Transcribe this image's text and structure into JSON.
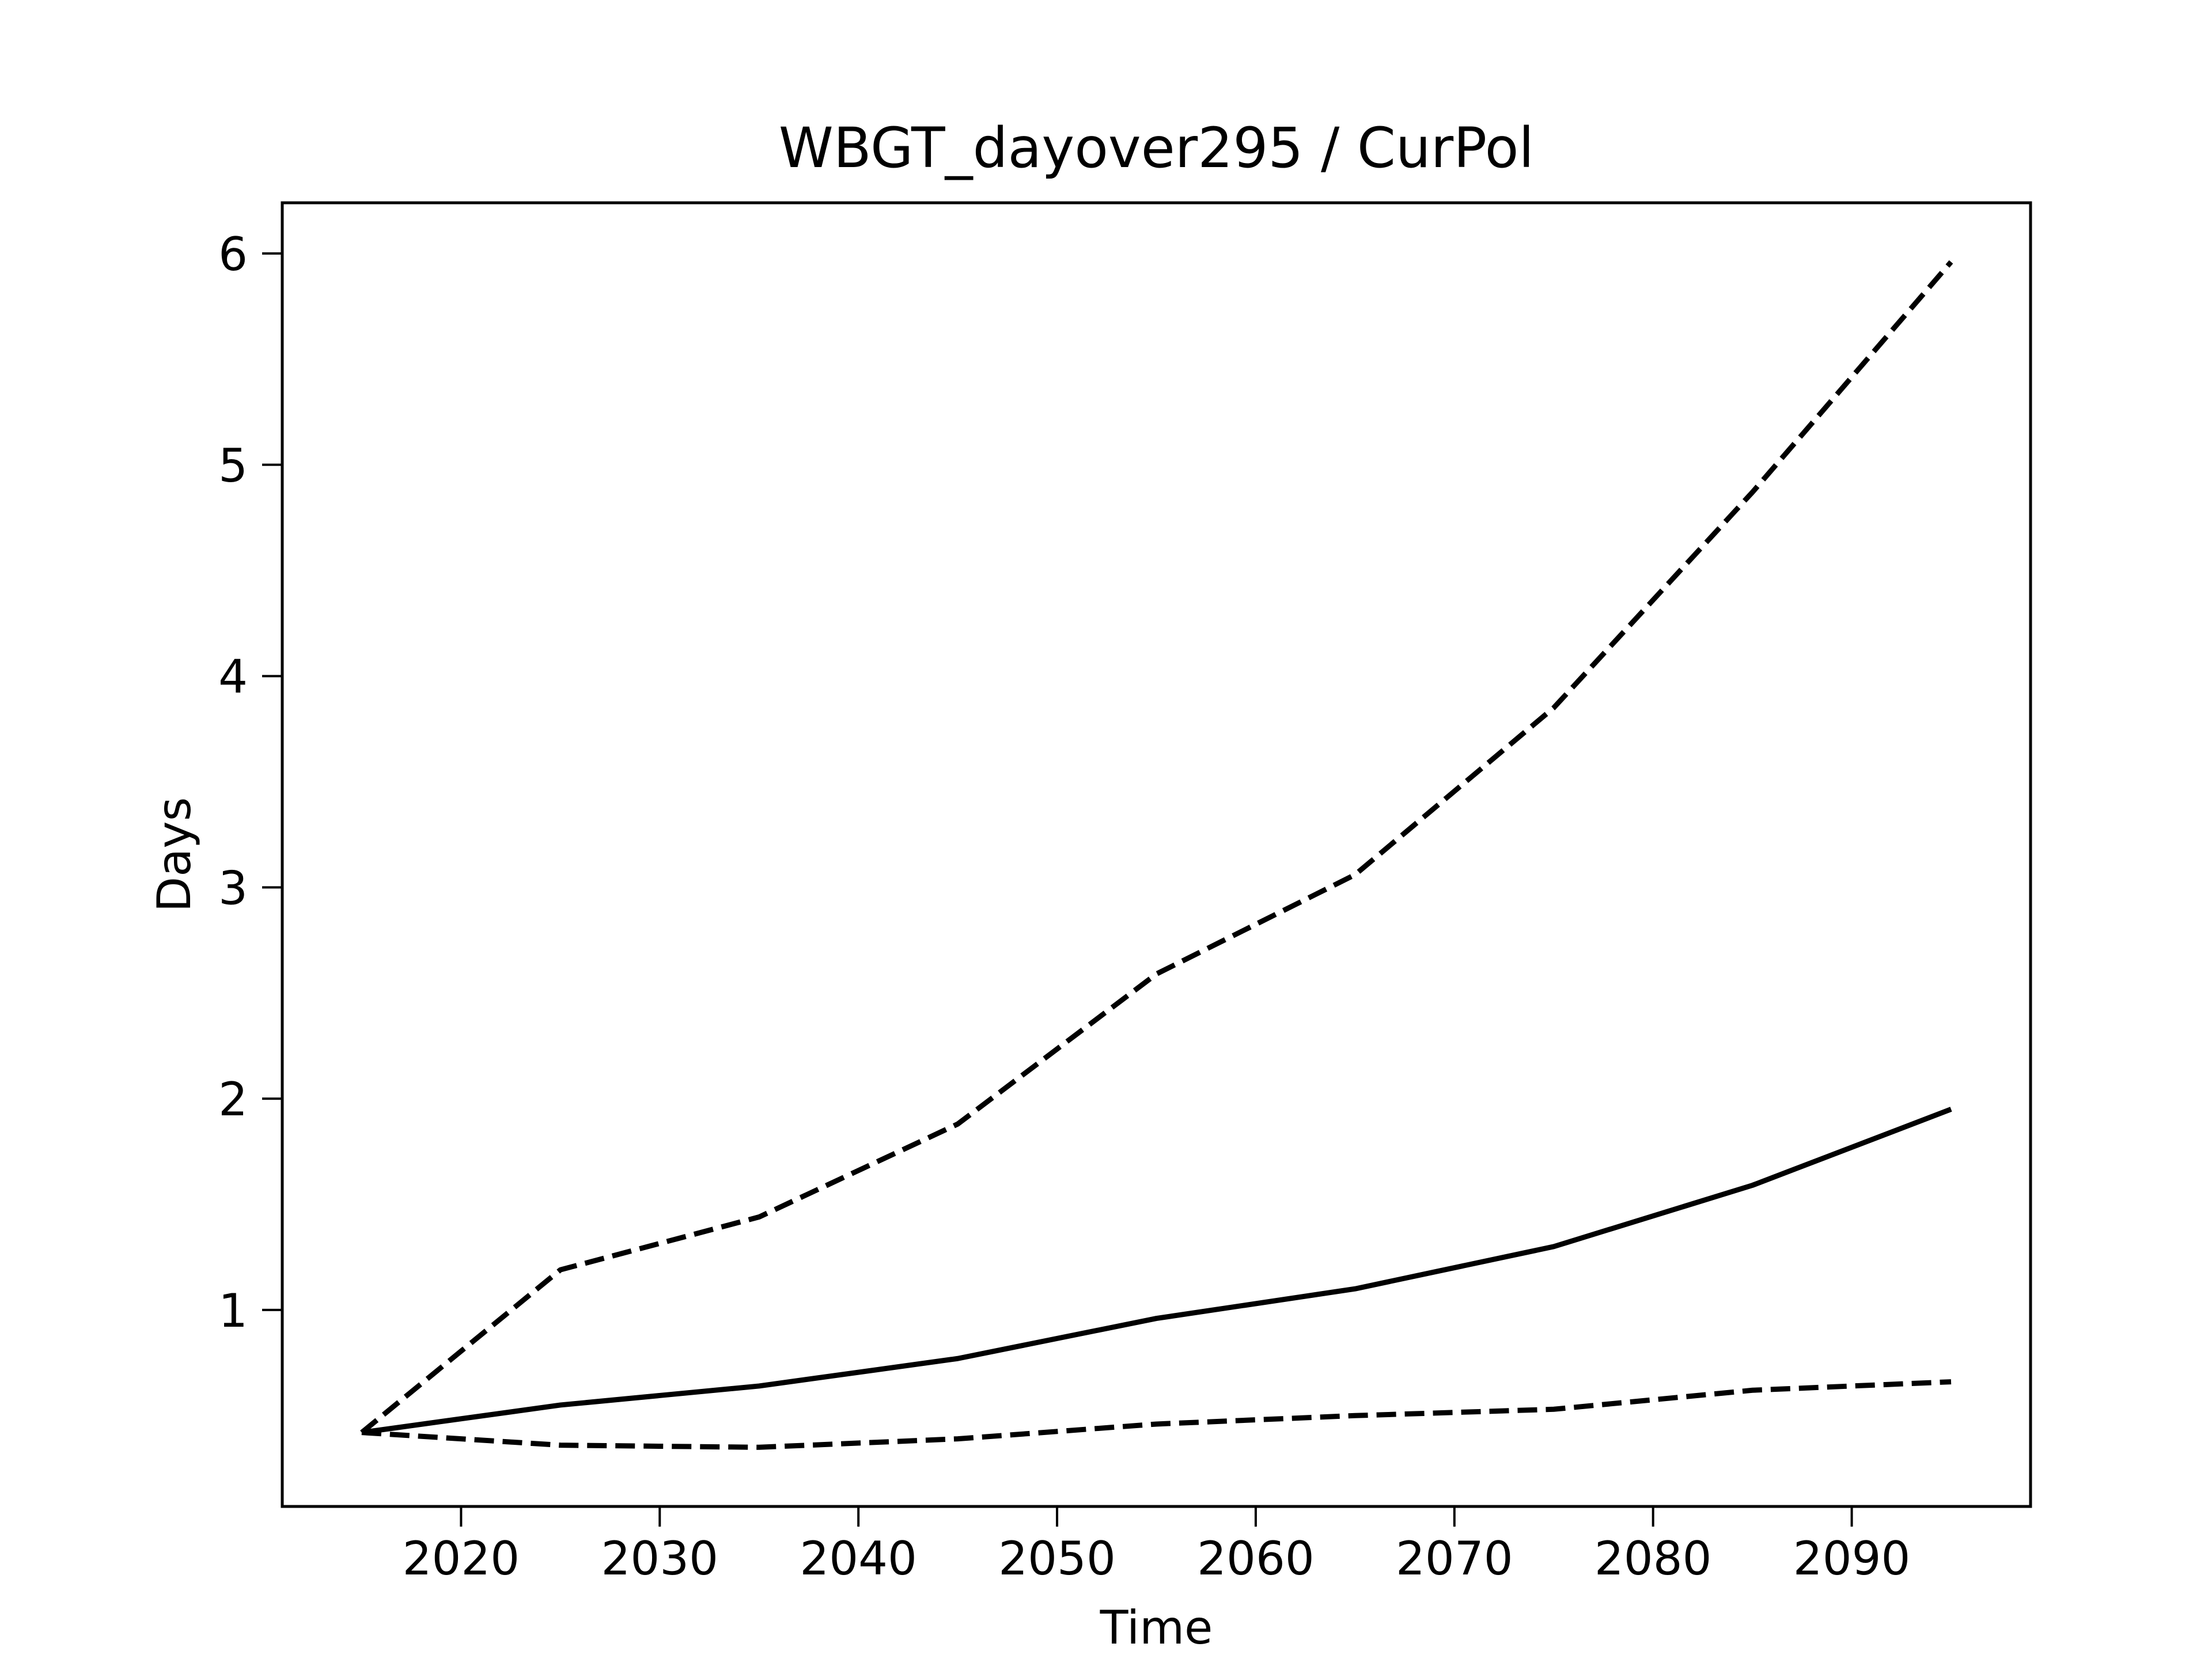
{
  "chart_data": {
    "type": "line",
    "title": "WBGT_dayover295 / CurPol",
    "xlabel": "Time",
    "ylabel": "Days",
    "xlim": [
      2011,
      2099
    ],
    "ylim": [
      0.07,
      6.24
    ],
    "x_ticks": [
      2020,
      2030,
      2040,
      2050,
      2060,
      2070,
      2080,
      2090
    ],
    "y_ticks": [
      1,
      2,
      3,
      4,
      5,
      6
    ],
    "grid": false,
    "x": [
      2015,
      2025,
      2035,
      2045,
      2055,
      2065,
      2075,
      2085,
      2095
    ],
    "series": [
      {
        "style": "dashed",
        "color": "#000000",
        "values": [
          0.42,
          1.19,
          1.44,
          1.88,
          2.59,
          3.06,
          3.85,
          4.87,
          5.96
        ]
      },
      {
        "style": "solid",
        "color": "#000000",
        "values": [
          0.42,
          0.55,
          0.64,
          0.77,
          0.96,
          1.1,
          1.3,
          1.59,
          1.95
        ]
      },
      {
        "style": "dashed",
        "color": "#000000",
        "values": [
          0.42,
          0.36,
          0.35,
          0.39,
          0.46,
          0.5,
          0.53,
          0.62,
          0.66
        ]
      }
    ]
  }
}
